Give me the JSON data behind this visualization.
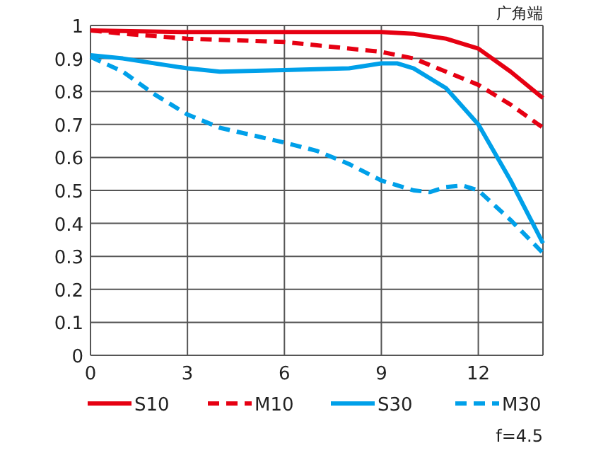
{
  "chart_data": {
    "type": "line",
    "title": "广角端",
    "annotations": [
      "f=4.5"
    ],
    "xlim": [
      0,
      14
    ],
    "xticks": [
      0,
      3,
      6,
      9,
      12
    ],
    "ylim": [
      0,
      1
    ],
    "yticks": [
      0,
      0.1,
      0.2,
      0.3,
      0.4,
      0.5,
      0.6,
      0.7,
      0.8,
      0.9,
      1
    ],
    "grid": true,
    "legend": "bottom",
    "marker": "none",
    "series": [
      {
        "name": "S10",
        "color": "#e60012",
        "line_style": "solid",
        "x": [
          0,
          3,
          6,
          9,
          10,
          11,
          12,
          13,
          14
        ],
        "values": [
          0.985,
          0.98,
          0.98,
          0.98,
          0.975,
          0.96,
          0.93,
          0.86,
          0.78
        ]
      },
      {
        "name": "M10",
        "color": "#e60012",
        "line_style": "dashed",
        "x": [
          0,
          1,
          3,
          6,
          9,
          10,
          11,
          12,
          13,
          14
        ],
        "values": [
          0.985,
          0.975,
          0.96,
          0.95,
          0.92,
          0.9,
          0.86,
          0.82,
          0.76,
          0.69
        ]
      },
      {
        "name": "S30",
        "color": "#00a0e9",
        "line_style": "solid",
        "x": [
          0,
          1,
          3,
          4,
          6,
          8,
          9,
          9.5,
          10,
          11,
          12,
          13,
          14
        ],
        "values": [
          0.91,
          0.9,
          0.87,
          0.86,
          0.865,
          0.87,
          0.885,
          0.885,
          0.87,
          0.81,
          0.7,
          0.53,
          0.34
        ]
      },
      {
        "name": "M30",
        "color": "#00a0e9",
        "line_style": "dashed",
        "x": [
          0,
          1,
          2,
          3,
          4,
          6,
          7,
          8,
          9,
          10,
          10.5,
          11,
          11.5,
          12,
          13,
          14
        ],
        "values": [
          0.905,
          0.86,
          0.79,
          0.73,
          0.69,
          0.645,
          0.62,
          0.58,
          0.53,
          0.5,
          0.495,
          0.51,
          0.515,
          0.5,
          0.41,
          0.31
        ]
      }
    ]
  }
}
